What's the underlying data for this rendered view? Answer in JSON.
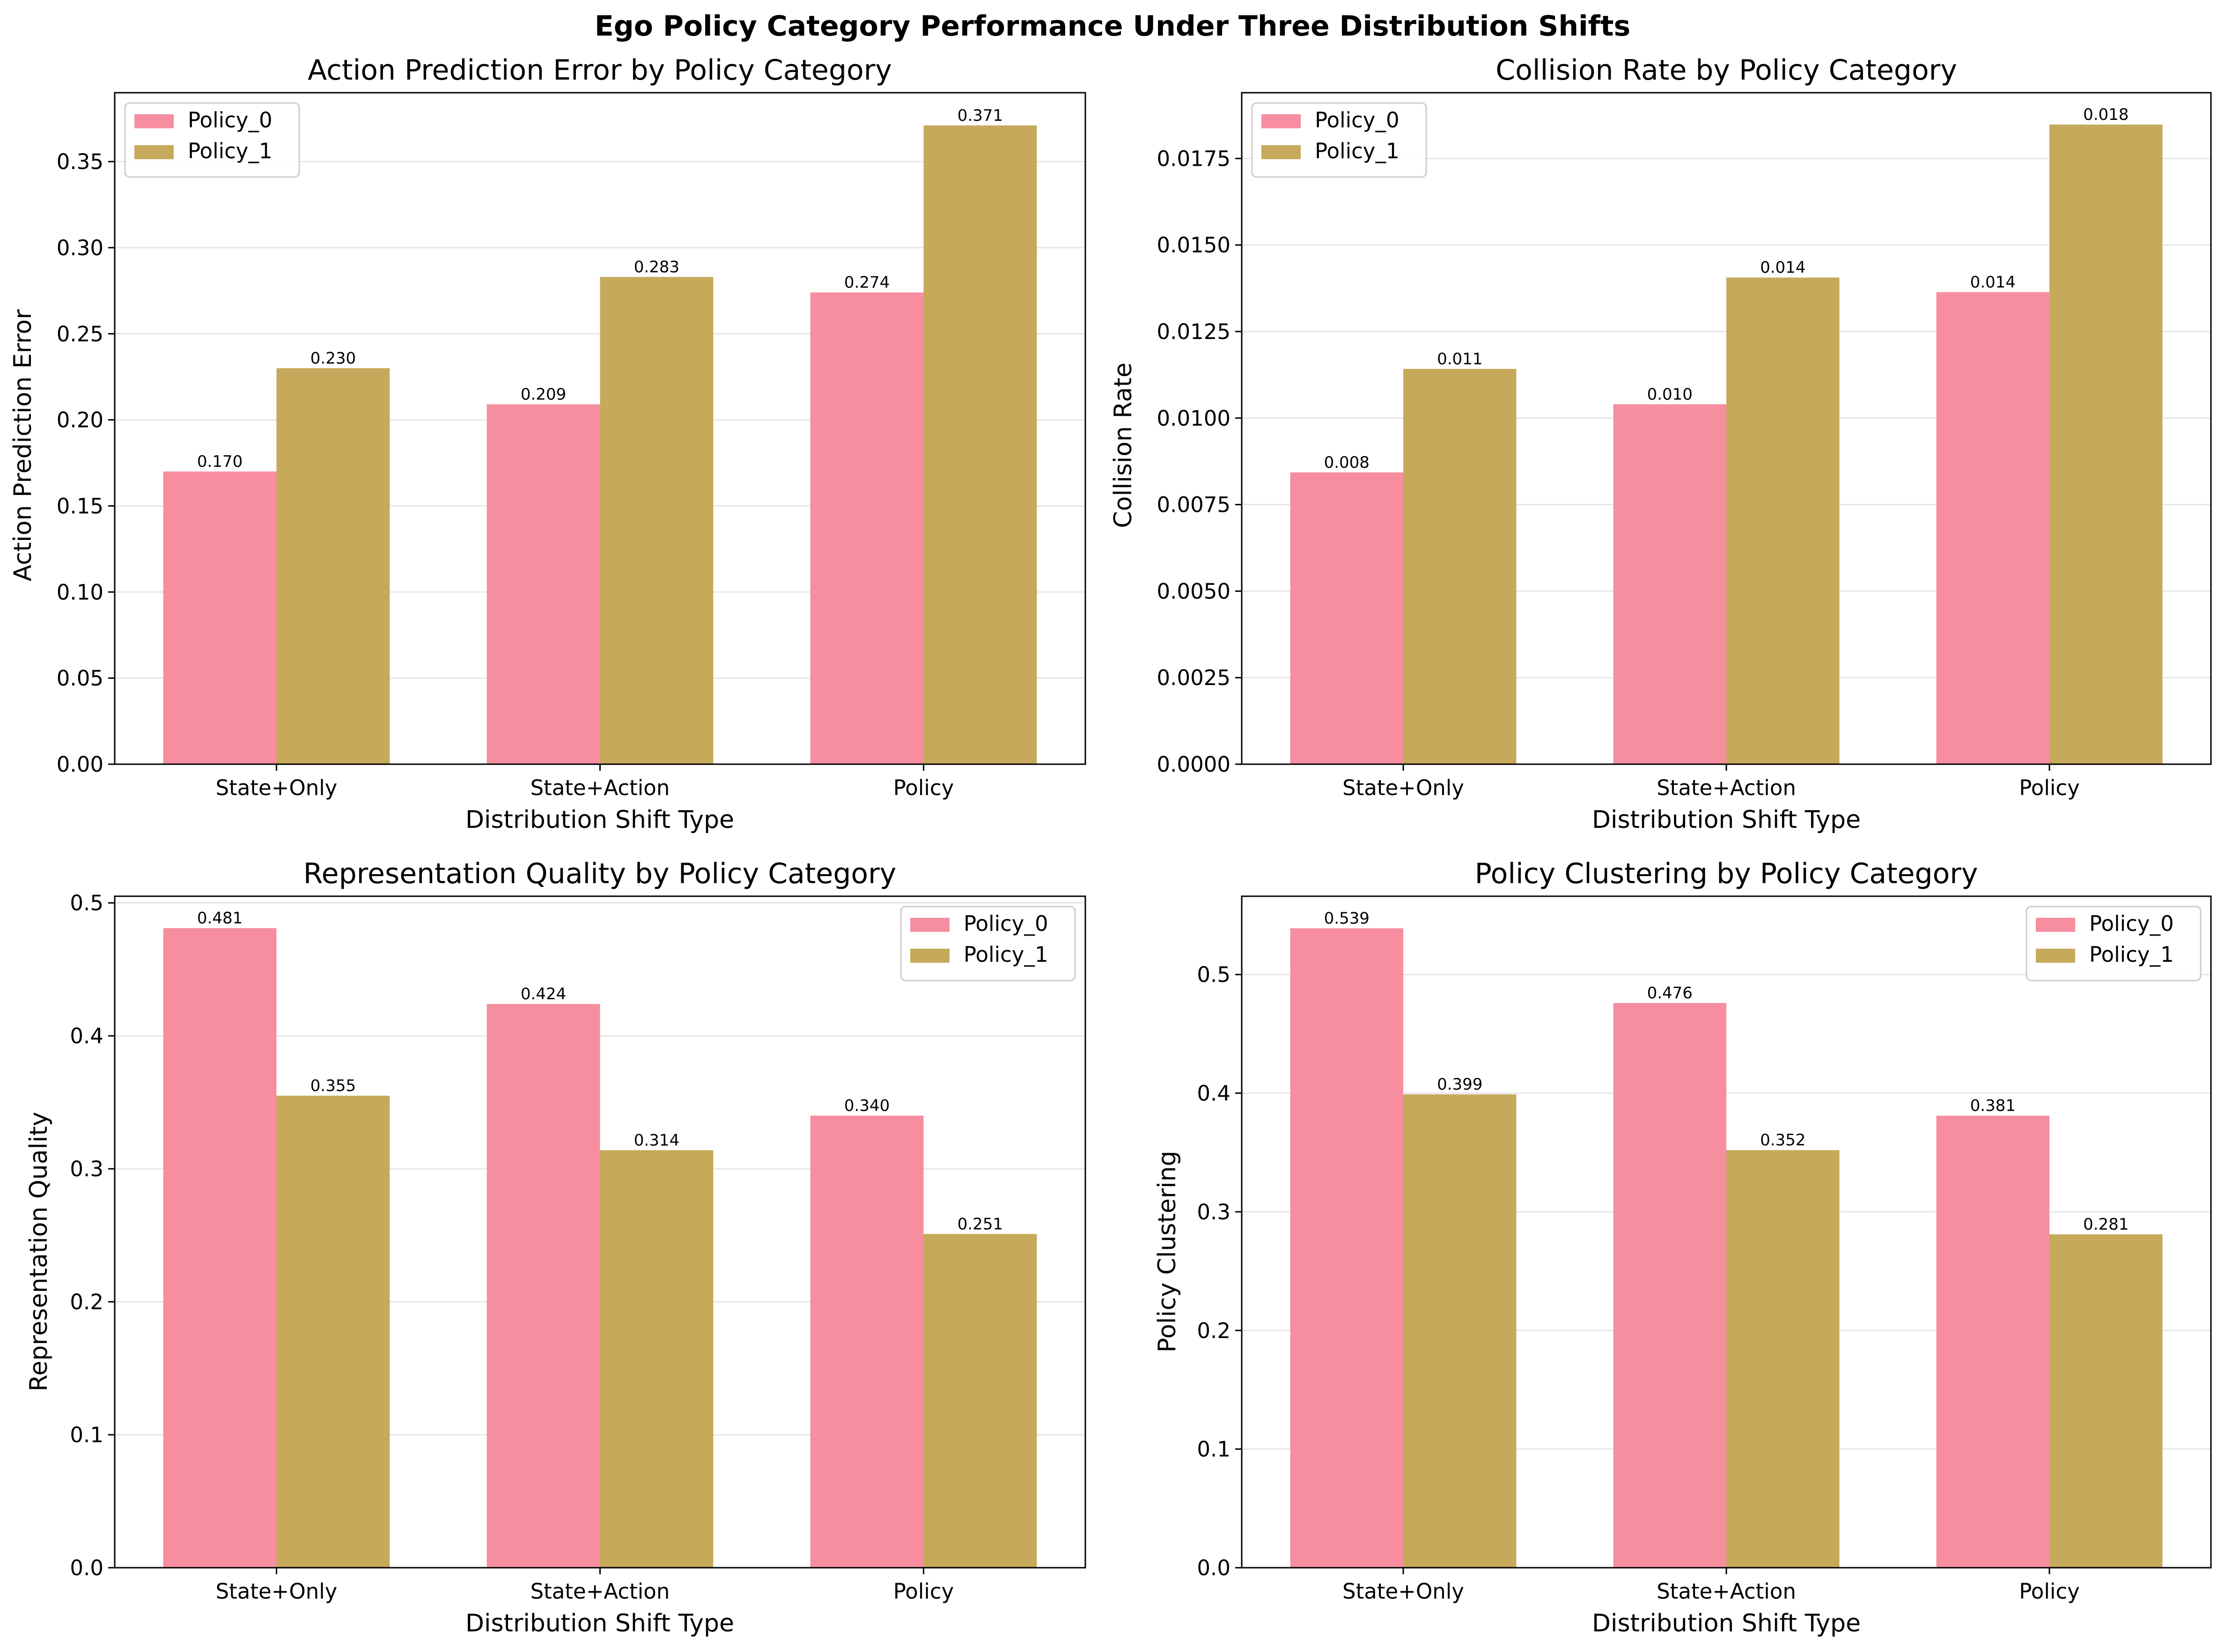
{
  "figure": {
    "suptitle": "Ego Policy Category Performance Under Three Distribution Shifts",
    "colors": {
      "policy_0": "#f68ea0",
      "policy_1": "#c6a95a",
      "grid": "#e6e6e6"
    }
  },
  "chart_data": [
    {
      "type": "bar",
      "title": "Action Prediction Error by Policy Category",
      "xlabel": "Distribution Shift Type",
      "ylabel": "Action Prediction Error",
      "categories": [
        "State+Only",
        "State+Action",
        "Policy"
      ],
      "series": [
        {
          "name": "Policy_0",
          "values": [
            0.17,
            0.209,
            0.274
          ],
          "labels": [
            "0.170",
            "0.209",
            "0.274"
          ]
        },
        {
          "name": "Policy_1",
          "values": [
            0.23,
            0.283,
            0.371
          ],
          "labels": [
            "0.230",
            "0.283",
            "0.371"
          ]
        }
      ],
      "ylim": [
        0,
        0.39
      ],
      "yticks": [
        0.0,
        0.05,
        0.1,
        0.15,
        0.2,
        0.25,
        0.3,
        0.35
      ],
      "ytick_labels": [
        "0.00",
        "0.05",
        "0.10",
        "0.15",
        "0.20",
        "0.25",
        "0.30",
        "0.35"
      ],
      "grid": true,
      "legend": "upper left"
    },
    {
      "type": "bar",
      "title": "Collision Rate by Policy Category",
      "xlabel": "Distribution Shift Type",
      "ylabel": "Collision Rate",
      "categories": [
        "State+Only",
        "State+Action",
        "Policy"
      ],
      "series": [
        {
          "name": "Policy_0",
          "values": [
            0.00843,
            0.0104,
            0.01364
          ],
          "labels": [
            "0.008",
            "0.010",
            "0.014"
          ]
        },
        {
          "name": "Policy_1",
          "values": [
            0.01142,
            0.01406,
            0.01848
          ],
          "labels": [
            "0.011",
            "0.014",
            "0.018"
          ]
        }
      ],
      "ylim": [
        0,
        0.0194
      ],
      "yticks": [
        0.0,
        0.0025,
        0.005,
        0.0075,
        0.01,
        0.0125,
        0.015,
        0.0175
      ],
      "ytick_labels": [
        "0.0000",
        "0.0025",
        "0.0050",
        "0.0075",
        "0.0100",
        "0.0125",
        "0.0150",
        "0.0175"
      ],
      "grid": true,
      "legend": "upper left"
    },
    {
      "type": "bar",
      "title": "Representation Quality by Policy Category",
      "xlabel": "Distribution Shift Type",
      "ylabel": "Representation Quality",
      "categories": [
        "State+Only",
        "State+Action",
        "Policy"
      ],
      "series": [
        {
          "name": "Policy_0",
          "values": [
            0.481,
            0.424,
            0.34
          ],
          "labels": [
            "0.481",
            "0.424",
            "0.340"
          ]
        },
        {
          "name": "Policy_1",
          "values": [
            0.355,
            0.314,
            0.251
          ],
          "labels": [
            "0.355",
            "0.314",
            "0.251"
          ]
        }
      ],
      "ylim": [
        0,
        0.505
      ],
      "yticks": [
        0.0,
        0.1,
        0.2,
        0.3,
        0.4,
        0.5
      ],
      "ytick_labels": [
        "0.0",
        "0.1",
        "0.2",
        "0.3",
        "0.4",
        "0.5"
      ],
      "grid": true,
      "legend": "upper right"
    },
    {
      "type": "bar",
      "title": "Policy Clustering by Policy Category",
      "xlabel": "Distribution Shift Type",
      "ylabel": "Policy Clustering",
      "categories": [
        "State+Only",
        "State+Action",
        "Policy"
      ],
      "series": [
        {
          "name": "Policy_0",
          "values": [
            0.539,
            0.476,
            0.381
          ],
          "labels": [
            "0.539",
            "0.476",
            "0.381"
          ]
        },
        {
          "name": "Policy_1",
          "values": [
            0.399,
            0.352,
            0.281
          ],
          "labels": [
            "0.399",
            "0.352",
            "0.281"
          ]
        }
      ],
      "ylim": [
        0,
        0.566
      ],
      "yticks": [
        0.0,
        0.1,
        0.2,
        0.3,
        0.4,
        0.5
      ],
      "ytick_labels": [
        "0.0",
        "0.1",
        "0.2",
        "0.3",
        "0.4",
        "0.5"
      ],
      "grid": true,
      "legend": "upper right"
    }
  ]
}
